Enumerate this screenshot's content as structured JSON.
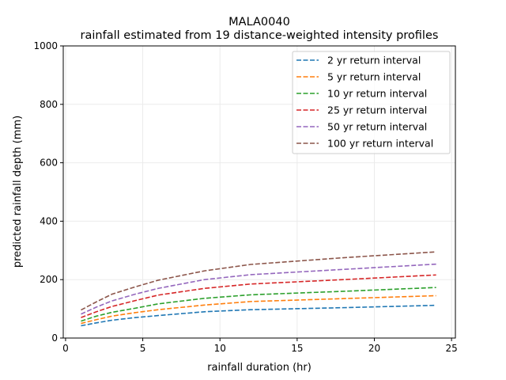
{
  "chart_data": {
    "type": "line",
    "title": "MALA0040",
    "subtitle": "rainfall estimated from 19 distance-weighted intensity profiles",
    "xlabel": "rainfall duration (hr)",
    "ylabel": "predicted rainfall depth (mm)",
    "xlim": [
      -0.15,
      25.25
    ],
    "ylim": [
      0,
      1000
    ],
    "xticks": [
      0,
      5,
      10,
      15,
      20,
      25
    ],
    "yticks": [
      0,
      200,
      400,
      600,
      800,
      1000
    ],
    "grid": true,
    "legend_position": "top-right",
    "x": [
      1,
      2,
      3,
      4.5,
      6,
      9,
      12,
      18,
      24
    ],
    "series": [
      {
        "name": "2 yr return interval",
        "color": "#1f77b4",
        "values": [
          42,
          52,
          61,
          70,
          77,
          90,
          97,
          104,
          112
        ]
      },
      {
        "name": "5 yr return interval",
        "color": "#ff7f0e",
        "values": [
          50,
          63,
          75,
          87,
          97,
          113,
          125,
          135,
          145
        ]
      },
      {
        "name": "10 yr return interval",
        "color": "#2ca02c",
        "values": [
          58,
          75,
          88,
          102,
          117,
          136,
          148,
          160,
          173
        ]
      },
      {
        "name": "25 yr return interval",
        "color": "#d62728",
        "values": [
          70,
          90,
          108,
          128,
          147,
          170,
          185,
          200,
          216
        ]
      },
      {
        "name": "50 yr return interval",
        "color": "#9467bd",
        "values": [
          82,
          106,
          127,
          150,
          170,
          200,
          217,
          235,
          253
        ]
      },
      {
        "name": "100 yr return interval",
        "color": "#8c564b",
        "values": [
          96,
          124,
          150,
          175,
          198,
          230,
          252,
          275,
          295
        ]
      }
    ]
  }
}
